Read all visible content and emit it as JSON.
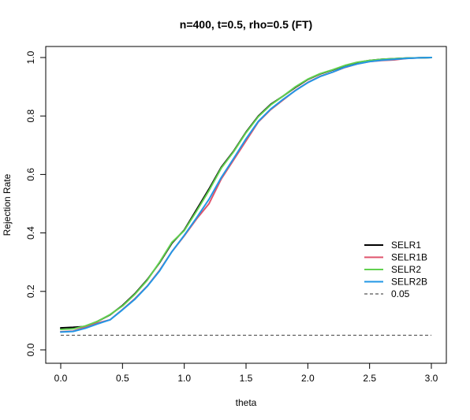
{
  "chart_data": {
    "type": "line",
    "title": "n=400, t=0.5, rho=0.5 (FT)",
    "xlabel": "theta",
    "ylabel": "Rejection Rate",
    "xlim": [
      0,
      3
    ],
    "ylim": [
      0,
      1
    ],
    "xticks": [
      "0.0",
      "0.5",
      "1.0",
      "1.5",
      "2.0",
      "2.5",
      "3.0"
    ],
    "yticks": [
      "0.0",
      "0.2",
      "0.4",
      "0.6",
      "0.8",
      "1.0"
    ],
    "grid": false,
    "legend_position": "right",
    "x": [
      0.0,
      0.1,
      0.2,
      0.3,
      0.4,
      0.5,
      0.6,
      0.7,
      0.8,
      0.9,
      1.0,
      1.1,
      1.2,
      1.3,
      1.4,
      1.5,
      1.6,
      1.7,
      1.8,
      1.9,
      2.0,
      2.1,
      2.2,
      2.3,
      2.4,
      2.5,
      2.6,
      2.7,
      2.8,
      2.9,
      3.0
    ],
    "series": [
      {
        "name": "SELR1",
        "color": "#000000",
        "style": "solid",
        "values": [
          0.075,
          0.077,
          0.08,
          0.098,
          0.12,
          0.152,
          0.192,
          0.24,
          0.298,
          0.365,
          0.41,
          0.48,
          0.55,
          0.625,
          0.68,
          0.745,
          0.8,
          0.84,
          0.868,
          0.898,
          0.925,
          0.944,
          0.957,
          0.972,
          0.983,
          0.99,
          0.994,
          0.996,
          0.998,
          0.999,
          1.0
        ]
      },
      {
        "name": "SELR1B",
        "color": "#DF536B",
        "style": "solid",
        "values": [
          0.062,
          0.064,
          0.078,
          0.092,
          0.103,
          0.138,
          0.175,
          0.218,
          0.272,
          0.336,
          0.39,
          0.448,
          0.5,
          0.585,
          0.65,
          0.715,
          0.78,
          0.822,
          0.855,
          0.888,
          0.915,
          0.936,
          0.95,
          0.966,
          0.978,
          0.986,
          0.99,
          0.992,
          0.997,
          0.999,
          1.0
        ]
      },
      {
        "name": "SELR2",
        "color": "#61D04F",
        "style": "solid",
        "values": [
          0.07,
          0.072,
          0.082,
          0.098,
          0.121,
          0.15,
          0.19,
          0.238,
          0.3,
          0.368,
          0.408,
          0.475,
          0.545,
          0.622,
          0.678,
          0.743,
          0.798,
          0.838,
          0.868,
          0.9,
          0.926,
          0.945,
          0.958,
          0.973,
          0.984,
          0.99,
          0.994,
          0.996,
          0.998,
          0.999,
          1.0
        ]
      },
      {
        "name": "SELR2B",
        "color": "#2297E6",
        "style": "solid",
        "values": [
          0.061,
          0.063,
          0.074,
          0.089,
          0.103,
          0.137,
          0.173,
          0.217,
          0.27,
          0.336,
          0.392,
          0.452,
          0.515,
          0.59,
          0.655,
          0.722,
          0.782,
          0.824,
          0.857,
          0.887,
          0.914,
          0.935,
          0.95,
          0.967,
          0.978,
          0.986,
          0.991,
          0.994,
          0.997,
          0.999,
          1.0
        ]
      }
    ],
    "reference_line": {
      "name": "0.05",
      "value": 0.05,
      "color": "#555555",
      "style": "dashed"
    }
  }
}
